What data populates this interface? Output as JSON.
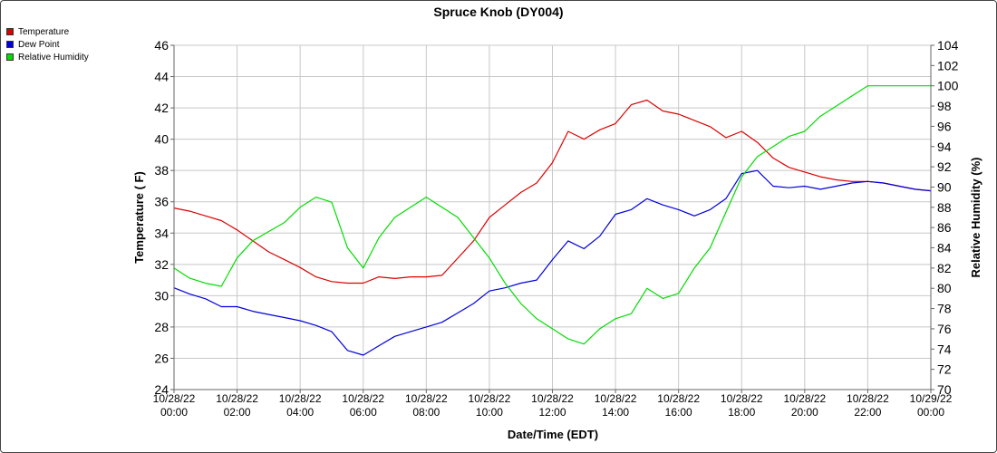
{
  "colors": {
    "temperature": "#dd0000",
    "dew_point": "#0000dd",
    "relative_humidity": "#00dd00",
    "grid": "#c8c8c8"
  },
  "chart_data": {
    "type": "line",
    "title": "Spruce Knob (DY004)",
    "xlabel": "Date/Time (EDT)",
    "ylabel": "Temperature ( F)",
    "y2label": "Relative Humidity (%)",
    "ylim": [
      24,
      46
    ],
    "y2lim": [
      70,
      104
    ],
    "xlim": [
      0,
      24
    ],
    "yticks": [
      "24",
      "26",
      "28",
      "30",
      "32",
      "34",
      "36",
      "38",
      "40",
      "42",
      "44",
      "46"
    ],
    "y2ticks": [
      "70",
      "72",
      "74",
      "76",
      "78",
      "80",
      "82",
      "84",
      "86",
      "88",
      "90",
      "92",
      "94",
      "96",
      "98",
      "100",
      "102",
      "104"
    ],
    "xticks": [
      {
        "date": "10/28/22",
        "time": "00:00"
      },
      {
        "date": "10/28/22",
        "time": "02:00"
      },
      {
        "date": "10/28/22",
        "time": "04:00"
      },
      {
        "date": "10/28/22",
        "time": "06:00"
      },
      {
        "date": "10/28/22",
        "time": "08:00"
      },
      {
        "date": "10/28/22",
        "time": "10:00"
      },
      {
        "date": "10/28/22",
        "time": "12:00"
      },
      {
        "date": "10/28/22",
        "time": "14:00"
      },
      {
        "date": "10/28/22",
        "time": "16:00"
      },
      {
        "date": "10/28/22",
        "time": "18:00"
      },
      {
        "date": "10/28/22",
        "time": "20:00"
      },
      {
        "date": "10/28/22",
        "time": "22:00"
      },
      {
        "date": "10/29/22",
        "time": "00:00"
      }
    ],
    "grid": true,
    "legend": "top-left",
    "series": [
      {
        "name": "Temperature",
        "axis": "left",
        "x": [
          0,
          0.5,
          1,
          1.5,
          2,
          2.5,
          3,
          3.5,
          4,
          4.5,
          5,
          5.5,
          6,
          6.5,
          7,
          7.5,
          8,
          8.5,
          9,
          9.5,
          10,
          10.5,
          11,
          11.5,
          12,
          12.5,
          13,
          13.5,
          14,
          14.5,
          15,
          15.5,
          16,
          16.5,
          17,
          17.5,
          18,
          18.5,
          19,
          19.5,
          20,
          20.5,
          21,
          21.5,
          22,
          22.5,
          23,
          23.5,
          24
        ],
        "values": [
          35.6,
          35.4,
          35.1,
          34.8,
          34.2,
          33.5,
          32.8,
          32.3,
          31.8,
          31.2,
          30.9,
          30.8,
          30.8,
          31.2,
          31.1,
          31.2,
          31.2,
          31.3,
          32.4,
          33.5,
          35.0,
          35.8,
          36.6,
          37.2,
          38.5,
          40.5,
          40.0,
          40.6,
          41.0,
          42.2,
          42.5,
          41.8,
          41.6,
          41.2,
          40.8,
          40.1,
          40.5,
          39.8,
          38.8,
          38.2,
          37.9,
          37.6,
          37.4,
          37.3,
          37.3,
          37.2,
          37.0,
          36.8,
          36.7
        ]
      },
      {
        "name": "Dew Point",
        "axis": "left",
        "x": [
          0,
          0.5,
          1,
          1.5,
          2,
          2.5,
          3,
          3.5,
          4,
          4.5,
          5,
          5.5,
          6,
          6.5,
          7,
          7.5,
          8,
          8.5,
          9,
          9.5,
          10,
          10.5,
          11,
          11.5,
          12,
          12.5,
          13,
          13.5,
          14,
          14.5,
          15,
          15.5,
          16,
          16.5,
          17,
          17.5,
          18,
          18.5,
          19,
          19.5,
          20,
          20.5,
          21,
          21.5,
          22,
          22.5,
          23,
          23.5,
          24
        ],
        "values": [
          30.5,
          30.1,
          29.8,
          29.3,
          29.3,
          29.0,
          28.8,
          28.6,
          28.4,
          28.1,
          27.7,
          26.5,
          26.2,
          26.8,
          27.4,
          27.7,
          28.0,
          28.3,
          28.9,
          29.5,
          30.3,
          30.5,
          30.8,
          31.0,
          32.3,
          33.5,
          33.0,
          33.8,
          35.2,
          35.5,
          36.2,
          35.8,
          35.5,
          35.1,
          35.5,
          36.2,
          37.8,
          38.0,
          37.0,
          36.9,
          37.0,
          36.8,
          37.0,
          37.2,
          37.3,
          37.2,
          37.0,
          36.8,
          36.7
        ]
      },
      {
        "name": "Relative Humidity",
        "axis": "right",
        "x": [
          0,
          0.5,
          1,
          1.5,
          2,
          2.5,
          3,
          3.5,
          4,
          4.5,
          5,
          5.5,
          6,
          6.5,
          7,
          7.5,
          8,
          8.5,
          9,
          9.5,
          10,
          10.5,
          11,
          11.5,
          12,
          12.5,
          13,
          13.5,
          14,
          14.5,
          15,
          15.5,
          16,
          16.5,
          17,
          17.5,
          18,
          18.5,
          19,
          19.5,
          20,
          20.5,
          21,
          21.5,
          22,
          22.5,
          23,
          23.5,
          24
        ],
        "values": [
          82,
          81,
          80.5,
          80.2,
          83,
          84.7,
          85.6,
          86.5,
          88,
          89,
          88.5,
          84,
          82,
          85,
          87,
          88,
          89,
          88,
          87,
          85,
          83,
          80.5,
          78.5,
          77,
          76,
          75,
          74.5,
          76,
          77,
          77.5,
          80,
          79,
          79.5,
          82,
          84,
          87.5,
          91,
          93,
          94,
          95,
          95.5,
          97,
          98,
          99,
          100,
          100,
          100,
          100,
          100
        ]
      }
    ]
  }
}
